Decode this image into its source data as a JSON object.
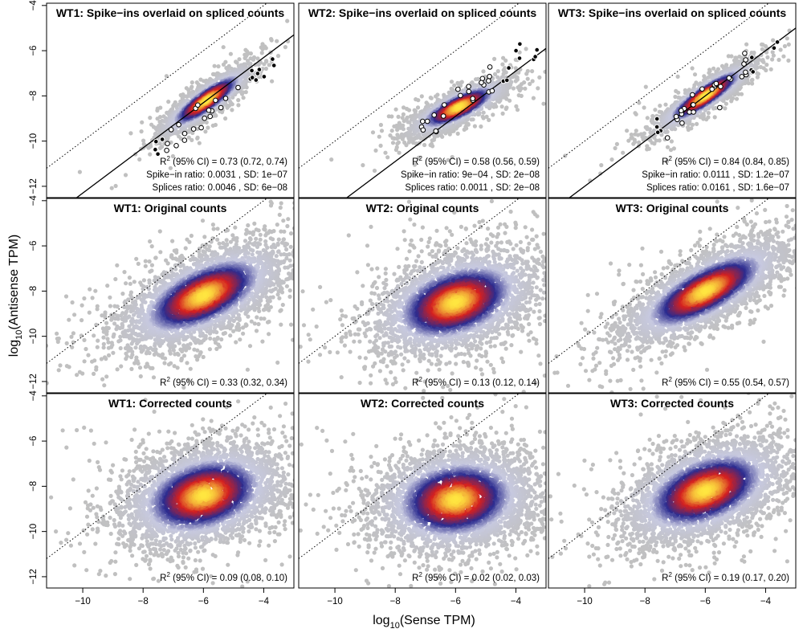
{
  "figure": {
    "xlabel_base": "log",
    "xlabel_sub": "10",
    "xlabel_rest": "(Sense TPM)",
    "ylabel_base": "log",
    "ylabel_sub": "10",
    "ylabel_rest": "(Antisense TPM)"
  },
  "colors": {
    "background_points": "#c0c0c0",
    "density_low": "#c7c9e0",
    "density_mid": "#2b2b8f",
    "density_high": "#d42020",
    "density_peak": "#ffe640",
    "spike_in_fill_white": "#ffffff",
    "spike_in_fill_black": "#000000"
  },
  "chart_data": [
    {
      "type": "scatter",
      "id": "p11",
      "title": "WT1: Spike−ins overlaid on spliced counts",
      "xlim": [
        -11.2,
        -3.0
      ],
      "ylim": [
        -12.5,
        -3.9
      ],
      "xticks": [
        "-10",
        "-8",
        "-6",
        "-4"
      ],
      "xtick_values": [
        -10,
        -8,
        -6,
        -4
      ],
      "yticks": [
        "-4",
        "-6",
        "-8",
        "-10",
        "-12"
      ],
      "ytick_values": [
        -4,
        -6,
        -8,
        -10,
        -12
      ],
      "density_center": [
        -5.9,
        -8.2
      ],
      "density_spread": [
        0.75,
        0.75
      ],
      "density_corr": 0.88,
      "density_n": 1800,
      "diagonal_line": true,
      "fit_line": {
        "slope": 1,
        "intercept": -2.3
      },
      "spike_ins": {
        "x_range": [
          -7.6,
          -3.6
        ],
        "slope": 1.05,
        "intercept": -2.5,
        "count": 32
      },
      "annotations": [
        {
          "r2_label": "R",
          "r2_sup": "2",
          "r2_rest": " (95% CI) = 0.73 (0.72, 0.74)"
        },
        {
          "text": "Spike−in ratio:  0.0031 , SD:  1e−07"
        },
        {
          "text": "Splices ratio:  0.0046 , SD:  6e−08"
        }
      ]
    },
    {
      "type": "scatter",
      "id": "p12",
      "title": "WT2: Spike−ins overlaid on spliced counts",
      "xlim": [
        -11.2,
        -3.0
      ],
      "ylim": [
        -12.5,
        -3.9
      ],
      "xticks": [
        "-10",
        "-8",
        "-6",
        "-4"
      ],
      "xtick_values": [
        -10,
        -8,
        -6,
        -4
      ],
      "yticks": [
        "-4",
        "-6",
        "-8",
        "-10",
        "-12"
      ],
      "ytick_values": [
        -4,
        -6,
        -8,
        -10,
        -12
      ],
      "density_center": [
        -5.9,
        -8.5
      ],
      "density_spread": [
        0.8,
        0.6
      ],
      "density_corr": 0.8,
      "density_n": 1800,
      "diagonal_line": true,
      "fit_line": {
        "slope": 1,
        "intercept": -2.9
      },
      "spike_ins": {
        "x_range": [
          -7.2,
          -3.3
        ],
        "slope": 0.85,
        "intercept": -3.2,
        "count": 32
      },
      "annotations": [
        {
          "r2_label": "R",
          "r2_sup": "2",
          "r2_rest": " (95% CI) = 0.58 (0.56, 0.59)"
        },
        {
          "text": "Spike−in ratio:  9e−04 , SD:  2e−08"
        },
        {
          "text": "Splices ratio:  0.0011 , SD:  2e−08"
        }
      ]
    },
    {
      "type": "scatter",
      "id": "p13",
      "title": "WT3: Spike−ins overlaid on spliced counts",
      "xlim": [
        -11.2,
        -3.0
      ],
      "ylim": [
        -12.5,
        -3.9
      ],
      "xticks": [
        "-10",
        "-8",
        "-6",
        "-4"
      ],
      "xtick_values": [
        -10,
        -8,
        -6,
        -4
      ],
      "yticks": [
        "-4",
        "-6",
        "-8",
        "-10",
        "-12"
      ],
      "ytick_values": [
        -4,
        -6,
        -8,
        -10,
        -12
      ],
      "density_center": [
        -6.0,
        -8.0
      ],
      "density_spread": [
        0.8,
        0.75
      ],
      "density_corr": 0.9,
      "density_n": 1800,
      "diagonal_line": true,
      "fit_line": {
        "slope": 1,
        "intercept": -2.0
      },
      "spike_ins": {
        "x_range": [
          -7.8,
          -3.4
        ],
        "slope": 1.0,
        "intercept": -2.1,
        "count": 36
      },
      "annotations": [
        {
          "r2_label": "R",
          "r2_sup": "2",
          "r2_rest": " (95% CI) = 0.84 (0.84, 0.85)"
        },
        {
          "text": "Spike−in ratio:  0.0111 , SD:  1.2e−07"
        },
        {
          "text": "Splices ratio:  0.0161 , SD:  1.6e−07"
        }
      ]
    },
    {
      "type": "scatter",
      "id": "p21",
      "title": "WT1: Original counts",
      "xlim": [
        -11.2,
        -3.0
      ],
      "ylim": [
        -12.5,
        -3.9
      ],
      "xticks": [
        "-10",
        "-8",
        "-6",
        "-4"
      ],
      "xtick_values": [
        -10,
        -8,
        -6,
        -4
      ],
      "yticks": [
        "-4",
        "-6",
        "-8",
        "-10",
        "-12"
      ],
      "ytick_values": [
        -4,
        -6,
        -8,
        -10,
        -12
      ],
      "density_center": [
        -6.0,
        -8.2
      ],
      "density_spread": [
        1.3,
        1.1
      ],
      "density_corr": 0.6,
      "density_n": 3400,
      "diagonal_line": true,
      "annotations": [
        {
          "r2_label": "R",
          "r2_sup": "2",
          "r2_rest": " (95% CI) = 0.33 (0.32, 0.34)"
        }
      ]
    },
    {
      "type": "scatter",
      "id": "p22",
      "title": "WT2: Original counts",
      "xlim": [
        -11.2,
        -3.0
      ],
      "ylim": [
        -12.5,
        -3.9
      ],
      "xticks": [
        "-10",
        "-8",
        "-6",
        "-4"
      ],
      "xtick_values": [
        -10,
        -8,
        -6,
        -4
      ],
      "yticks": [
        "-4",
        "-6",
        "-8",
        "-10",
        "-12"
      ],
      "ytick_values": [
        -4,
        -6,
        -8,
        -10,
        -12
      ],
      "density_center": [
        -6.0,
        -8.5
      ],
      "density_spread": [
        1.3,
        1.1
      ],
      "density_corr": 0.38,
      "density_n": 3400,
      "diagonal_line": true,
      "annotations": [
        {
          "r2_label": "R",
          "r2_sup": "2",
          "r2_rest": " (95% CI) = 0.13 (0.12, 0.14)"
        }
      ]
    },
    {
      "type": "scatter",
      "id": "p23",
      "title": "WT3: Original counts",
      "xlim": [
        -11.2,
        -3.0
      ],
      "ylim": [
        -12.5,
        -3.9
      ],
      "xticks": [
        "-10",
        "-8",
        "-6",
        "-4"
      ],
      "xtick_values": [
        -10,
        -8,
        -6,
        -4
      ],
      "yticks": [
        "-4",
        "-6",
        "-8",
        "-10",
        "-12"
      ],
      "ytick_values": [
        -4,
        -6,
        -8,
        -10,
        -12
      ],
      "density_center": [
        -6.0,
        -8.0
      ],
      "density_spread": [
        1.3,
        1.1
      ],
      "density_corr": 0.74,
      "density_n": 3400,
      "diagonal_line": true,
      "annotations": [
        {
          "r2_label": "R",
          "r2_sup": "2",
          "r2_rest": " (95% CI) = 0.55 (0.54, 0.57)"
        }
      ]
    },
    {
      "type": "scatter",
      "id": "p31",
      "title": "WT1: Corrected counts",
      "xlim": [
        -11.2,
        -3.0
      ],
      "ylim": [
        -12.5,
        -3.9
      ],
      "xticks": [
        "-10",
        "-8",
        "-6",
        "-4"
      ],
      "xtick_values": [
        -10,
        -8,
        -6,
        -4
      ],
      "yticks": [
        "-4",
        "-6",
        "-8",
        "-10",
        "-12"
      ],
      "ytick_values": [
        -4,
        -6,
        -8,
        -10,
        -12
      ],
      "density_center": [
        -6.0,
        -8.4
      ],
      "density_spread": [
        1.3,
        1.1
      ],
      "density_corr": 0.3,
      "density_n": 3600,
      "diagonal_line": true,
      "annotations": [
        {
          "r2_label": "R",
          "r2_sup": "2",
          "r2_rest": " (95% CI) = 0.09 (0.08, 0.10)"
        }
      ]
    },
    {
      "type": "scatter",
      "id": "p32",
      "title": "WT2: Corrected counts",
      "xlim": [
        -11.2,
        -3.0
      ],
      "ylim": [
        -12.5,
        -3.9
      ],
      "xticks": [
        "-10",
        "-8",
        "-6",
        "-4"
      ],
      "xtick_values": [
        -10,
        -8,
        -6,
        -4
      ],
      "yticks": [
        "-4",
        "-6",
        "-8",
        "-10",
        "-12"
      ],
      "ytick_values": [
        -4,
        -6,
        -8,
        -10,
        -12
      ],
      "density_center": [
        -6.0,
        -8.6
      ],
      "density_spread": [
        1.3,
        1.1
      ],
      "density_corr": 0.14,
      "density_n": 3600,
      "diagonal_line": true,
      "annotations": [
        {
          "r2_label": "R",
          "r2_sup": "2",
          "r2_rest": " (95% CI) = 0.02 (0.02, 0.03)"
        }
      ]
    },
    {
      "type": "scatter",
      "id": "p33",
      "title": "WT3: Corrected counts",
      "xlim": [
        -11.2,
        -3.0
      ],
      "ylim": [
        -12.5,
        -3.9
      ],
      "xticks": [
        "-10",
        "-8",
        "-6",
        "-4"
      ],
      "xtick_values": [
        -10,
        -8,
        -6,
        -4
      ],
      "yticks": [
        "-4",
        "-6",
        "-8",
        "-10",
        "-12"
      ],
      "ytick_values": [
        -4,
        -6,
        -8,
        -10,
        -12
      ],
      "density_center": [
        -6.0,
        -8.2
      ],
      "density_spread": [
        1.3,
        1.1
      ],
      "density_corr": 0.44,
      "density_n": 3600,
      "diagonal_line": true,
      "annotations": [
        {
          "r2_label": "R",
          "r2_sup": "2",
          "r2_rest": " (95% CI) = 0.19 (0.17, 0.20)"
        }
      ]
    }
  ]
}
